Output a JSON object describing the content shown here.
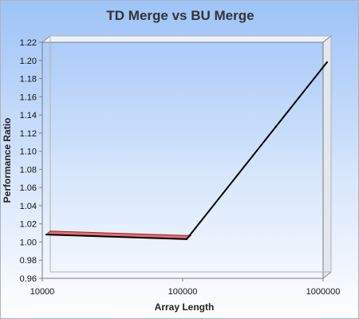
{
  "chart_data": {
    "type": "line",
    "title": "TD Merge vs BU Merge",
    "xlabel": "Array Length",
    "ylabel": "Performance Ratio",
    "x_scale": "log",
    "x_ticks": [
      "10000",
      "100000",
      "1000000"
    ],
    "y_ticks": [
      "0.96",
      "0.98",
      "1.00",
      "1.02",
      "1.04",
      "1.06",
      "1.08",
      "1.10",
      "1.12",
      "1.14",
      "1.16",
      "1.18",
      "1.20",
      "1.22"
    ],
    "ylim": [
      0.96,
      1.22
    ],
    "xlim": [
      10000,
      1000000
    ],
    "grid": false,
    "legend": "none",
    "series": [
      {
        "color": "#000000",
        "fill_below_baseline": "#f06a6a",
        "baseline": 1.0,
        "x": [
          10000,
          100000,
          1000000
        ],
        "y": [
          1.005,
          1.0,
          1.195
        ]
      }
    ]
  }
}
